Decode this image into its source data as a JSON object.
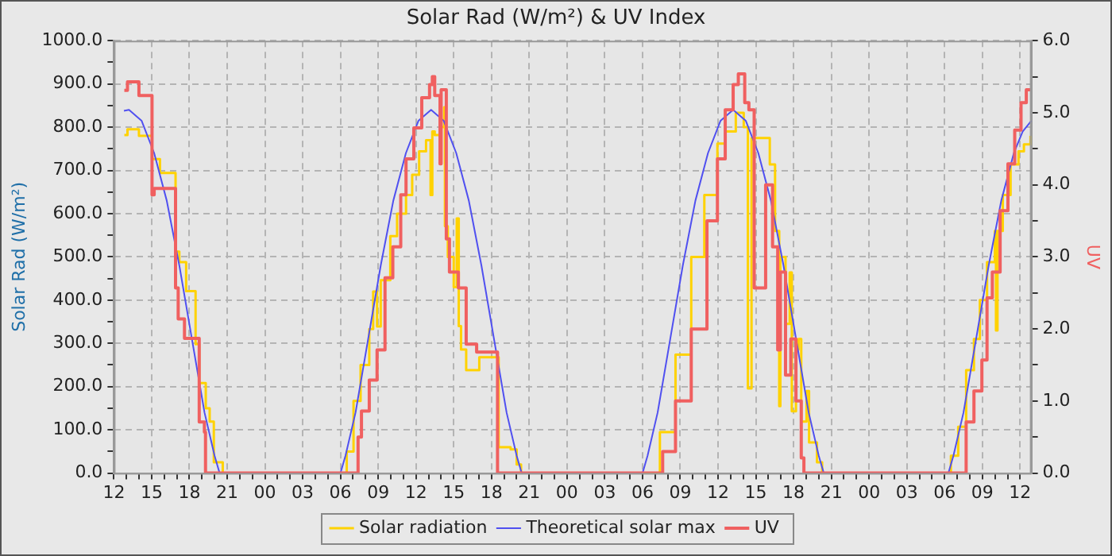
{
  "chart_data": {
    "type": "line",
    "title": "Solar Rad (W/m²) & UV Index",
    "ylabel": "Solar Rad (W/m²)",
    "y2label": "UV",
    "legend": "bottom",
    "grid": true,
    "marker": "none",
    "xlim": [
      12,
      84.9
    ],
    "xticks": [
      {
        "value": 12,
        "label": "12"
      },
      {
        "value": 13,
        "label": null
      },
      {
        "value": 14,
        "label": null
      },
      {
        "value": 15,
        "label": "15"
      },
      {
        "value": 16,
        "label": null
      },
      {
        "value": 17,
        "label": null
      },
      {
        "value": 18,
        "label": "18"
      },
      {
        "value": 19,
        "label": null
      },
      {
        "value": 20,
        "label": null
      },
      {
        "value": 21,
        "label": "21"
      },
      {
        "value": 22,
        "label": null
      },
      {
        "value": 23,
        "label": null
      },
      {
        "value": 24,
        "label": "00"
      },
      {
        "value": 25,
        "label": null
      },
      {
        "value": 26,
        "label": null
      },
      {
        "value": 27,
        "label": "03"
      },
      {
        "value": 28,
        "label": null
      },
      {
        "value": 29,
        "label": null
      },
      {
        "value": 30,
        "label": "06"
      },
      {
        "value": 31,
        "label": null
      },
      {
        "value": 32,
        "label": null
      },
      {
        "value": 33,
        "label": "09"
      },
      {
        "value": 34,
        "label": null
      },
      {
        "value": 35,
        "label": null
      },
      {
        "value": 36,
        "label": "12"
      },
      {
        "value": 37,
        "label": null
      },
      {
        "value": 38,
        "label": null
      },
      {
        "value": 39,
        "label": "15"
      },
      {
        "value": 40,
        "label": null
      },
      {
        "value": 41,
        "label": null
      },
      {
        "value": 42,
        "label": "18"
      },
      {
        "value": 43,
        "label": null
      },
      {
        "value": 44,
        "label": null
      },
      {
        "value": 45,
        "label": "21"
      },
      {
        "value": 46,
        "label": null
      },
      {
        "value": 47,
        "label": null
      },
      {
        "value": 48,
        "label": "00"
      },
      {
        "value": 49,
        "label": null
      },
      {
        "value": 50,
        "label": null
      },
      {
        "value": 51,
        "label": "03"
      },
      {
        "value": 52,
        "label": null
      },
      {
        "value": 53,
        "label": null
      },
      {
        "value": 54,
        "label": "06"
      },
      {
        "value": 55,
        "label": null
      },
      {
        "value": 56,
        "label": null
      },
      {
        "value": 57,
        "label": "09"
      },
      {
        "value": 58,
        "label": null
      },
      {
        "value": 59,
        "label": null
      },
      {
        "value": 60,
        "label": "12"
      },
      {
        "value": 61,
        "label": null
      },
      {
        "value": 62,
        "label": null
      },
      {
        "value": 63,
        "label": "15"
      },
      {
        "value": 64,
        "label": null
      },
      {
        "value": 65,
        "label": null
      },
      {
        "value": 66,
        "label": "18"
      },
      {
        "value": 67,
        "label": null
      },
      {
        "value": 68,
        "label": null
      },
      {
        "value": 69,
        "label": "21"
      },
      {
        "value": 70,
        "label": null
      },
      {
        "value": 71,
        "label": null
      },
      {
        "value": 72,
        "label": "00"
      },
      {
        "value": 73,
        "label": null
      },
      {
        "value": 74,
        "label": null
      },
      {
        "value": 75,
        "label": "03"
      },
      {
        "value": 76,
        "label": null
      },
      {
        "value": 77,
        "label": null
      },
      {
        "value": 78,
        "label": "06"
      },
      {
        "value": 79,
        "label": null
      },
      {
        "value": 80,
        "label": null
      },
      {
        "value": 81,
        "label": "09"
      },
      {
        "value": 82,
        "label": null
      },
      {
        "value": 83,
        "label": null
      },
      {
        "value": 84,
        "label": "12"
      }
    ],
    "ylim": [
      0,
      1000
    ],
    "yticks": [
      {
        "value": 0,
        "label": "0.0"
      },
      {
        "value": 50,
        "label": null
      },
      {
        "value": 100,
        "label": "100.0"
      },
      {
        "value": 150,
        "label": null
      },
      {
        "value": 200,
        "label": "200.0"
      },
      {
        "value": 250,
        "label": null
      },
      {
        "value": 300,
        "label": "300.0"
      },
      {
        "value": 350,
        "label": null
      },
      {
        "value": 400,
        "label": "400.0"
      },
      {
        "value": 450,
        "label": null
      },
      {
        "value": 500,
        "label": "500.0"
      },
      {
        "value": 550,
        "label": null
      },
      {
        "value": 600,
        "label": "600.0"
      },
      {
        "value": 650,
        "label": null
      },
      {
        "value": 700,
        "label": "700.0"
      },
      {
        "value": 750,
        "label": null
      },
      {
        "value": 800,
        "label": "800.0"
      },
      {
        "value": 850,
        "label": null
      },
      {
        "value": 900,
        "label": "900.0"
      },
      {
        "value": 950,
        "label": null
      },
      {
        "value": 1000,
        "label": "1000.0"
      }
    ],
    "y2lim": [
      0,
      6
    ],
    "y2ticks": [
      {
        "value": 0,
        "label": "0.0"
      },
      {
        "value": 0.5,
        "label": null
      },
      {
        "value": 1,
        "label": "1.0"
      },
      {
        "value": 1.5,
        "label": null
      },
      {
        "value": 2,
        "label": "2.0"
      },
      {
        "value": 2.5,
        "label": null
      },
      {
        "value": 3,
        "label": "3.0"
      },
      {
        "value": 3.5,
        "label": null
      },
      {
        "value": 4,
        "label": "4.0"
      },
      {
        "value": 4.5,
        "label": null
      },
      {
        "value": 5,
        "label": "5.0"
      },
      {
        "value": 5.5,
        "label": null
      },
      {
        "value": 6,
        "label": "6.0"
      }
    ],
    "series": [
      {
        "name": "Solar radiation",
        "color": "#ffd200",
        "type": "step",
        "x": [
          12.83,
          13.08,
          13.99,
          15.03,
          15.66,
          16.9,
          17.2,
          17.74,
          18.49,
          18.78,
          19.3,
          19.61,
          19.94,
          20.65,
          30.09,
          30.5,
          31.04,
          31.6,
          32.29,
          32.6,
          32.91,
          33.2,
          33.96,
          34.5,
          35.21,
          35.7,
          36.25,
          36.8,
          37.16,
          37.3,
          37.49,
          38.0,
          38.24,
          38.3,
          38.53,
          39.0,
          39.24,
          39.4,
          39.58,
          39.99,
          41.03,
          42.27,
          42.57,
          43.52,
          44.0,
          44.35,
          54.34,
          55.38,
          56.62,
          57.87,
          58.91,
          59.95,
          60.6,
          61.41,
          62.04,
          62.37,
          62.66,
          64.11,
          64.53,
          64.86,
          64.95,
          65.36,
          65.69,
          65.86,
          66.19,
          66.4,
          66.61,
          67.03,
          67.23,
          67.86,
          68.27,
          78.05,
          78.5,
          79.08,
          79.71,
          80.33,
          80.8,
          81.37,
          81.99,
          82.08,
          82.2,
          82.62,
          83.24,
          83.87,
          84.3,
          84.82
        ],
        "values": [
          782,
          795,
          780,
          726,
          694,
          512,
          488,
          421,
          298,
          208,
          150,
          119,
          25,
          0,
          0,
          50,
          167,
          250,
          333,
          420,
          339,
          446,
          548,
          600,
          643,
          690,
          744,
          770,
          643,
          790,
          782,
          800,
          846,
          571,
          500,
          430,
          589,
          340,
          286,
          238,
          268,
          268,
          60,
          55,
          20,
          0,
          0,
          95,
          274,
          500,
          643,
          762,
          790,
          833,
          800,
          196,
          775,
          714,
          560,
          155,
          500,
          345,
          464,
          143,
          286,
          310,
          119,
          190,
          71,
          25,
          0,
          0,
          40,
          107,
          238,
          310,
          400,
          488,
          560,
          330,
          560,
          643,
          714,
          744,
          760,
          780
        ]
      },
      {
        "name": "Theoretical solar max",
        "color": "#5050f0",
        "type": "line",
        "x": [
          12.8,
          13.2,
          14.2,
          15.2,
          16.2,
          17.2,
          18.2,
          19.2,
          20.0,
          20.4,
          30.0,
          30.4,
          31.2,
          32.2,
          33.2,
          34.2,
          35.2,
          36.2,
          37.2,
          38.2,
          39.2,
          40.2,
          41.2,
          42.2,
          43.2,
          44.0,
          44.4,
          54.0,
          54.4,
          55.2,
          56.2,
          57.2,
          58.2,
          59.2,
          60.2,
          61.2,
          62.2,
          63.2,
          64.2,
          65.2,
          66.2,
          67.2,
          68.0,
          68.4,
          78.3,
          78.7,
          79.5,
          80.5,
          81.5,
          82.5,
          83.5,
          84.2,
          84.9
        ],
        "values": [
          838,
          840,
          815,
          740,
          630,
          480,
          310,
          140,
          40,
          0,
          0,
          40,
          140,
          310,
          480,
          630,
          740,
          815,
          840,
          815,
          740,
          630,
          480,
          310,
          140,
          40,
          0,
          0,
          40,
          140,
          310,
          480,
          630,
          740,
          815,
          840,
          815,
          740,
          630,
          480,
          310,
          140,
          40,
          0,
          0,
          40,
          140,
          310,
          480,
          630,
          740,
          790,
          815
        ]
      },
      {
        "name": "UV",
        "color": "#f06060",
        "type": "step",
        "axis": "y2",
        "x": [
          12.83,
          13.08,
          13.99,
          15.03,
          15.2,
          16.9,
          17.11,
          17.61,
          18.78,
          19.19,
          19.28,
          31.38,
          31.4,
          31.67,
          32.29,
          32.91,
          33.54,
          34.16,
          34.79,
          35.21,
          35.83,
          36.46,
          37.08,
          37.3,
          37.49,
          37.91,
          38.0,
          38.12,
          38.41,
          38.66,
          39.37,
          39.99,
          40.82,
          42.48,
          55.46,
          55.6,
          56.62,
          57.87,
          59.12,
          59.95,
          60.57,
          61.2,
          61.61,
          62.12,
          62.45,
          62.87,
          63.78,
          64.33,
          64.74,
          64.95,
          65.36,
          65.78,
          66.19,
          66.61,
          66.82,
          79.42,
          79.71,
          80.33,
          80.96,
          81.37,
          81.79,
          82.41,
          83.03,
          83.57,
          84.07,
          84.49,
          84.82
        ],
        "values": [
          5.31,
          5.43,
          5.24,
          3.86,
          3.95,
          2.57,
          2.14,
          1.87,
          0.71,
          0.57,
          0,
          0,
          0.5,
          0.86,
          1.29,
          1.71,
          2.71,
          3.14,
          3.86,
          4.36,
          4.79,
          5.21,
          5.39,
          5.5,
          5.24,
          4.29,
          5.32,
          5.32,
          3.25,
          2.79,
          2.57,
          1.79,
          1.68,
          0,
          0,
          0.3,
          1.0,
          2.0,
          3.5,
          4.36,
          5.04,
          5.39,
          5.54,
          5.14,
          5.04,
          2.57,
          4.0,
          3.14,
          1.71,
          2.79,
          1.36,
          1.86,
          1.0,
          0.21,
          0,
          0,
          0.71,
          1.14,
          1.57,
          2.43,
          2.79,
          3.64,
          4.29,
          4.76,
          5.14,
          5.32,
          5.32
        ]
      }
    ]
  }
}
